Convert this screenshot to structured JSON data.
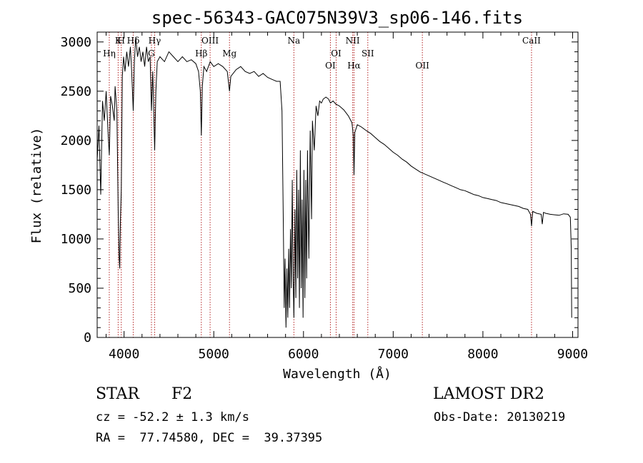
{
  "chart_data": {
    "type": "line",
    "title": "spec-56343-GAC075N39V3_sp06-146.fits",
    "xlabel": "Wavelength (Å)",
    "ylabel": "Flux (relative)",
    "xlim": [
      3700,
      9060
    ],
    "ylim": [
      0,
      3100
    ],
    "xticks": [
      4000,
      5000,
      6000,
      7000,
      8000,
      9000
    ],
    "yticks": [
      0,
      500,
      1000,
      1500,
      2000,
      2500,
      3000
    ],
    "grid": false,
    "line_color": "#000000",
    "marker_color": "#b22222",
    "spectral_lines": [
      {
        "label": "Hη",
        "x": 3835,
        "row": 1
      },
      {
        "label": "K",
        "x": 3934,
        "row": 0
      },
      {
        "label": "H",
        "x": 3969,
        "row": 0
      },
      {
        "label": "Hδ",
        "x": 4102,
        "row": 0
      },
      {
        "label": "G",
        "x": 4305,
        "row": 1
      },
      {
        "label": "Hγ",
        "x": 4341,
        "row": 0
      },
      {
        "label": "OIII",
        "x": 4959,
        "row": 0
      },
      {
        "label": "Hβ",
        "x": 4861,
        "row": 1
      },
      {
        "label": "Mg",
        "x": 5175,
        "row": 1
      },
      {
        "label": "Na",
        "x": 5893,
        "row": 0
      },
      {
        "label": "OI",
        "x": 6300,
        "row": 2
      },
      {
        "label": "OI",
        "x": 6364,
        "row": 1
      },
      {
        "label": "NII",
        "x": 6548,
        "row": 0
      },
      {
        "label": "Hα",
        "x": 6563,
        "row": 2
      },
      {
        "label": "SII",
        "x": 6717,
        "row": 1
      },
      {
        "label": "OII",
        "x": 7325,
        "row": 2
      },
      {
        "label": "CaII",
        "x": 8542,
        "row": 0
      }
    ],
    "series": [
      {
        "points": [
          [
            3700,
            1800
          ],
          [
            3720,
            2150
          ],
          [
            3740,
            1450
          ],
          [
            3760,
            2400
          ],
          [
            3780,
            2200
          ],
          [
            3800,
            2500
          ],
          [
            3820,
            2100
          ],
          [
            3835,
            1850
          ],
          [
            3850,
            2450
          ],
          [
            3870,
            2350
          ],
          [
            3890,
            2200
          ],
          [
            3900,
            2550
          ],
          [
            3920,
            2300
          ],
          [
            3934,
            1300
          ],
          [
            3945,
            800
          ],
          [
            3952,
            700
          ],
          [
            3960,
            1200
          ],
          [
            3969,
            1500
          ],
          [
            3980,
            2650
          ],
          [
            3995,
            2850
          ],
          [
            4010,
            2700
          ],
          [
            4030,
            2900
          ],
          [
            4050,
            2750
          ],
          [
            4070,
            2950
          ],
          [
            4085,
            2700
          ],
          [
            4102,
            2300
          ],
          [
            4115,
            2800
          ],
          [
            4130,
            3050
          ],
          [
            4150,
            2850
          ],
          [
            4170,
            2950
          ],
          [
            4190,
            2800
          ],
          [
            4210,
            2900
          ],
          [
            4230,
            2750
          ],
          [
            4250,
            2950
          ],
          [
            4270,
            2800
          ],
          [
            4290,
            2850
          ],
          [
            4305,
            2300
          ],
          [
            4320,
            2700
          ],
          [
            4341,
            1900
          ],
          [
            4355,
            2500
          ],
          [
            4370,
            2800
          ],
          [
            4400,
            2850
          ],
          [
            4450,
            2800
          ],
          [
            4500,
            2900
          ],
          [
            4550,
            2850
          ],
          [
            4600,
            2800
          ],
          [
            4650,
            2850
          ],
          [
            4700,
            2800
          ],
          [
            4750,
            2820
          ],
          [
            4800,
            2780
          ],
          [
            4830,
            2700
          ],
          [
            4850,
            2500
          ],
          [
            4861,
            2050
          ],
          [
            4872,
            2550
          ],
          [
            4890,
            2750
          ],
          [
            4920,
            2700
          ],
          [
            4960,
            2800
          ],
          [
            5000,
            2750
          ],
          [
            5050,
            2780
          ],
          [
            5100,
            2750
          ],
          [
            5150,
            2700
          ],
          [
            5175,
            2500
          ],
          [
            5190,
            2650
          ],
          [
            5250,
            2720
          ],
          [
            5300,
            2750
          ],
          [
            5350,
            2700
          ],
          [
            5400,
            2680
          ],
          [
            5450,
            2700
          ],
          [
            5500,
            2650
          ],
          [
            5550,
            2680
          ],
          [
            5600,
            2640
          ],
          [
            5650,
            2620
          ],
          [
            5700,
            2600
          ],
          [
            5740,
            2600
          ],
          [
            5760,
            2300
          ],
          [
            5775,
            1200
          ],
          [
            5785,
            300
          ],
          [
            5795,
            800
          ],
          [
            5805,
            100
          ],
          [
            5815,
            700
          ],
          [
            5825,
            200
          ],
          [
            5835,
            900
          ],
          [
            5845,
            300
          ],
          [
            5855,
            1100
          ],
          [
            5865,
            500
          ],
          [
            5875,
            1600
          ],
          [
            5885,
            600
          ],
          [
            5893,
            200
          ],
          [
            5905,
            1300
          ],
          [
            5915,
            400
          ],
          [
            5925,
            1700
          ],
          [
            5935,
            600
          ],
          [
            5945,
            1500
          ],
          [
            5955,
            300
          ],
          [
            5965,
            1900
          ],
          [
            5975,
            500
          ],
          [
            5985,
            1400
          ],
          [
            5995,
            200
          ],
          [
            6005,
            1700
          ],
          [
            6015,
            400
          ],
          [
            6025,
            1600
          ],
          [
            6035,
            600
          ],
          [
            6045,
            1900
          ],
          [
            6060,
            800
          ],
          [
            6075,
            2100
          ],
          [
            6090,
            1200
          ],
          [
            6100,
            2200
          ],
          [
            6120,
            1900
          ],
          [
            6140,
            2350
          ],
          [
            6160,
            2250
          ],
          [
            6180,
            2400
          ],
          [
            6200,
            2380
          ],
          [
            6220,
            2420
          ],
          [
            6250,
            2440
          ],
          [
            6280,
            2420
          ],
          [
            6300,
            2380
          ],
          [
            6330,
            2400
          ],
          [
            6360,
            2370
          ],
          [
            6400,
            2350
          ],
          [
            6450,
            2310
          ],
          [
            6500,
            2250
          ],
          [
            6540,
            2180
          ],
          [
            6555,
            2050
          ],
          [
            6563,
            1650
          ],
          [
            6572,
            2080
          ],
          [
            6600,
            2160
          ],
          [
            6640,
            2140
          ],
          [
            6700,
            2100
          ],
          [
            6750,
            2070
          ],
          [
            6800,
            2030
          ],
          [
            6850,
            1990
          ],
          [
            6900,
            1960
          ],
          [
            6950,
            1920
          ],
          [
            7000,
            1880
          ],
          [
            7050,
            1850
          ],
          [
            7100,
            1810
          ],
          [
            7150,
            1780
          ],
          [
            7200,
            1740
          ],
          [
            7250,
            1710
          ],
          [
            7300,
            1680
          ],
          [
            7350,
            1660
          ],
          [
            7400,
            1640
          ],
          [
            7450,
            1620
          ],
          [
            7500,
            1600
          ],
          [
            7550,
            1580
          ],
          [
            7600,
            1560
          ],
          [
            7650,
            1540
          ],
          [
            7700,
            1520
          ],
          [
            7750,
            1500
          ],
          [
            7800,
            1490
          ],
          [
            7850,
            1470
          ],
          [
            7900,
            1450
          ],
          [
            7950,
            1440
          ],
          [
            8000,
            1420
          ],
          [
            8050,
            1410
          ],
          [
            8100,
            1400
          ],
          [
            8150,
            1390
          ],
          [
            8200,
            1370
          ],
          [
            8250,
            1360
          ],
          [
            8300,
            1350
          ],
          [
            8350,
            1340
          ],
          [
            8400,
            1330
          ],
          [
            8450,
            1310
          ],
          [
            8500,
            1300
          ],
          [
            8530,
            1250
          ],
          [
            8542,
            1130
          ],
          [
            8555,
            1280
          ],
          [
            8600,
            1260
          ],
          [
            8650,
            1250
          ],
          [
            8662,
            1150
          ],
          [
            8675,
            1270
          ],
          [
            8700,
            1260
          ],
          [
            8750,
            1250
          ],
          [
            8800,
            1245
          ],
          [
            8850,
            1240
          ],
          [
            8900,
            1255
          ],
          [
            8950,
            1250
          ],
          [
            8975,
            1220
          ],
          [
            8985,
            900
          ],
          [
            8990,
            200
          ]
        ]
      }
    ]
  },
  "info": {
    "object_type": "STAR",
    "subclass": "F2",
    "survey": "LAMOST DR2",
    "cz": "cz = -52.2 ± 1.3 km/s",
    "obs_date": "Obs-Date: 20130219",
    "coords": "RA =  77.74580, DEC =  39.37395"
  }
}
